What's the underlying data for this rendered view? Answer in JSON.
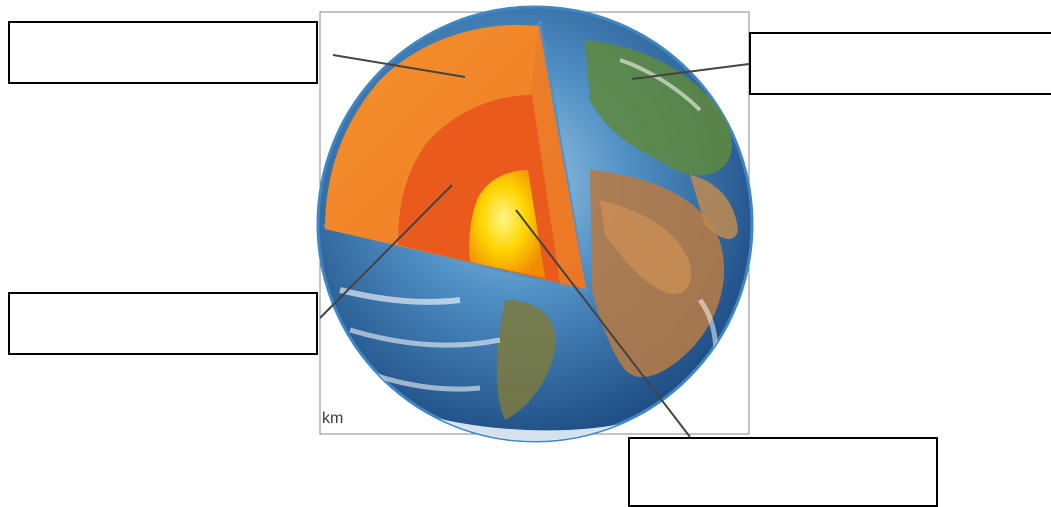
{
  "diagram": {
    "scale_unit": "km",
    "labels": [
      "",
      "",
      "",
      ""
    ]
  },
  "colors": {
    "crust_surface": "#4e8fc4",
    "mantle": "#f28a2a",
    "outer_core": "#ea5a1c",
    "inner_core": "#ffd400",
    "leader_line": "#444444"
  }
}
